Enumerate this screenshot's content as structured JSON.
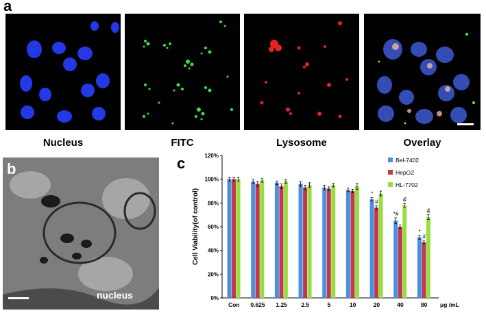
{
  "panel_a": {
    "letter": "a",
    "panels": [
      {
        "label": "Nucleus",
        "stain_color": "#2233ee"
      },
      {
        "label": "FITC",
        "stain_color": "#33dd33"
      },
      {
        "label": "Lysosome",
        "stain_color": "#ee2222"
      },
      {
        "label": "Overlay",
        "stain_color": "#6688cc"
      }
    ]
  },
  "panel_b": {
    "letter": "b",
    "annotation": "nucleus"
  },
  "panel_c": {
    "letter": "c"
  },
  "chart_data": {
    "type": "bar",
    "categories": [
      "Con",
      "0.625",
      "1.25",
      "2.5",
      "5",
      "10",
      "20",
      "40",
      "80"
    ],
    "x_unit": "μg /mL",
    "ylabel": "Cell Viability(of control)",
    "ylim": [
      0,
      120
    ],
    "yticks": [
      "0%",
      "20%",
      "40%",
      "60%",
      "80%",
      "100%",
      "120%"
    ],
    "legend_position": "top-right",
    "grid": false,
    "series": [
      {
        "name": "Bel-7402",
        "color": "#4a90e2",
        "values": [
          100,
          98,
          97,
          96,
          93,
          91,
          83,
          65,
          51
        ],
        "errors": [
          1.5,
          2,
          1.5,
          2,
          2,
          1.5,
          1.5,
          2.5,
          1.5
        ]
      },
      {
        "name": "HepG2",
        "color": "#c0394b",
        "values": [
          100,
          96,
          94,
          93,
          92,
          90,
          76,
          60,
          47
        ],
        "errors": [
          1.5,
          2,
          2,
          2,
          1.5,
          1.5,
          1.5,
          1.5,
          1.5
        ]
      },
      {
        "name": "HL-7702",
        "color": "#99dd44",
        "values": [
          100,
          99,
          98,
          95,
          95,
          94,
          88,
          78,
          68
        ],
        "errors": [
          1.5,
          1.5,
          1.5,
          2,
          1.5,
          2.5,
          2,
          1.5,
          2
        ]
      }
    ],
    "annotations": [
      {
        "category": "20",
        "series": "Bel-7402",
        "text": "*"
      },
      {
        "category": "20",
        "series": "HepG2",
        "text": "#"
      },
      {
        "category": "40",
        "series": "Bel-7402",
        "text": "*#"
      },
      {
        "category": "40",
        "series": "HL-7702",
        "text": "&"
      },
      {
        "category": "80",
        "series": "Bel-7402",
        "text": "*"
      },
      {
        "category": "80",
        "series": "HepG2",
        "text": "#"
      },
      {
        "category": "80",
        "series": "HL-7702",
        "text": "&"
      }
    ]
  }
}
